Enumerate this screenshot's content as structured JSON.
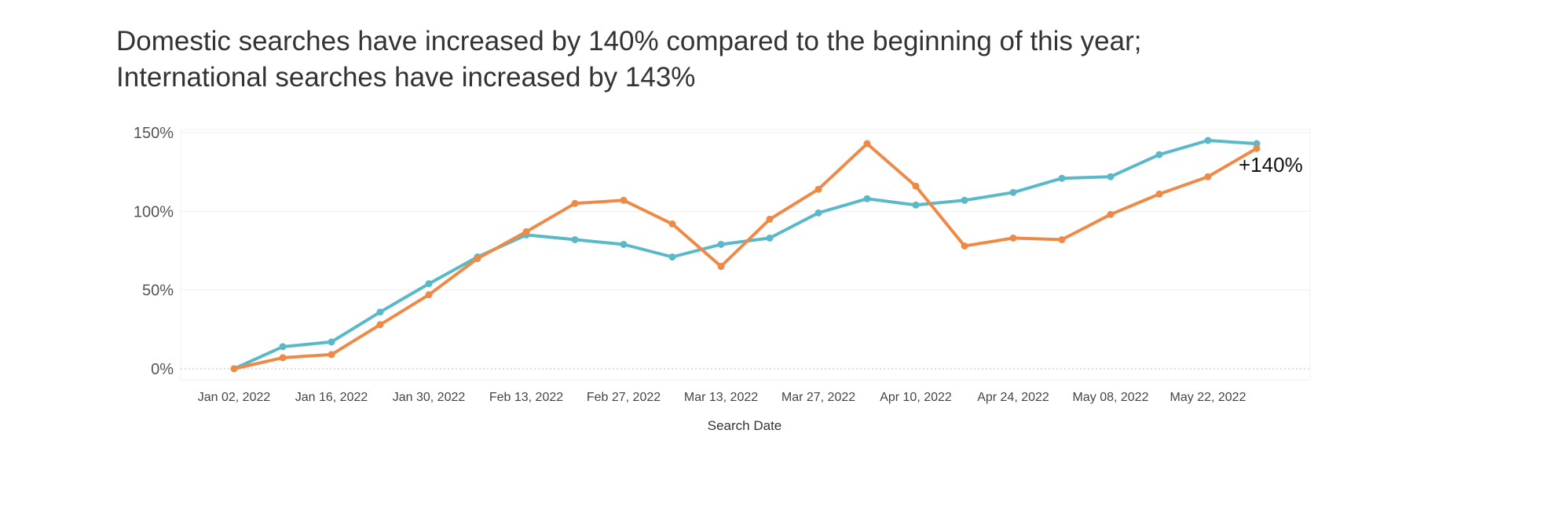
{
  "chart_data": {
    "type": "line",
    "title": "Domestic searches have increased by 140% compared to the beginning of this year;",
    "subtitle": "International searches have increased by 143%",
    "xlabel": "Search Date",
    "ylabel": "",
    "x": [
      "2022-01-02",
      "2022-01-09",
      "2022-01-16",
      "2022-01-23",
      "2022-01-30",
      "2022-02-06",
      "2022-02-13",
      "2022-02-20",
      "2022-02-27",
      "2022-03-06",
      "2022-03-13",
      "2022-03-20",
      "2022-03-27",
      "2022-04-03",
      "2022-04-10",
      "2022-04-17",
      "2022-04-24",
      "2022-05-01",
      "2022-05-08",
      "2022-05-15",
      "2022-05-22",
      "2022-05-29"
    ],
    "x_tick_labels": [
      "Jan 02, 2022",
      "Jan 16, 2022",
      "Jan 30, 2022",
      "Feb 13, 2022",
      "Feb 27, 2022",
      "Mar 13, 2022",
      "Mar 27, 2022",
      "Apr 10, 2022",
      "Apr 24, 2022",
      "May 08, 2022",
      "May 22, 2022"
    ],
    "y_tick_labels": [
      "0%",
      "50%",
      "100%",
      "150%"
    ],
    "y_ticks": [
      0,
      50,
      100,
      150
    ],
    "ylim": [
      -7,
      152
    ],
    "grid": true,
    "series": [
      {
        "color": "#5ab9c8",
        "values": [
          0,
          14,
          17,
          36,
          54,
          71,
          85,
          82,
          79,
          71,
          79,
          83,
          99,
          108,
          104,
          107,
          112,
          121,
          122,
          136,
          145,
          143
        ]
      },
      {
        "color": "#ee8a48",
        "values": [
          0,
          7,
          9,
          28,
          47,
          70,
          87,
          105,
          107,
          92,
          65,
          95,
          114,
          143,
          116,
          78,
          83,
          82,
          98,
          111,
          122,
          140
        ]
      }
    ],
    "annotations": [
      {
        "text": "+140%",
        "series": 1,
        "index": 21
      }
    ]
  }
}
